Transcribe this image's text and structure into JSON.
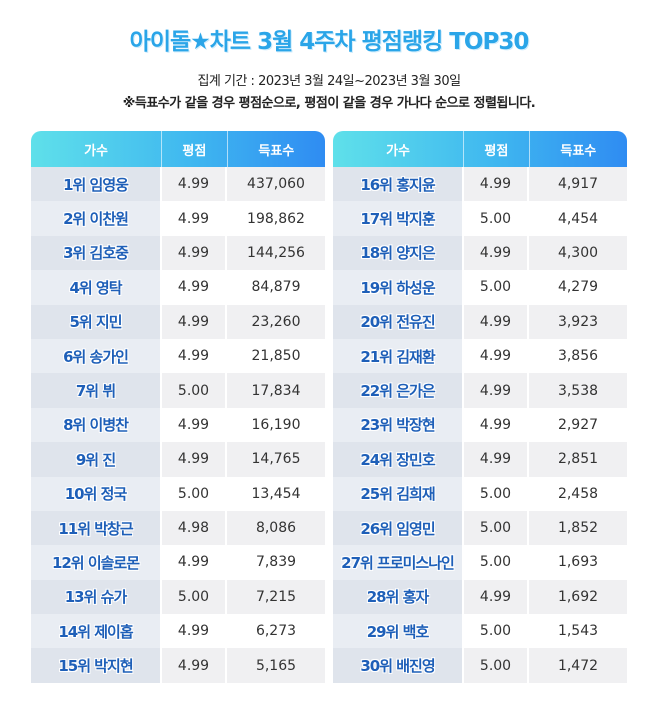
{
  "header": {
    "title": "아이돌★차트 3월 4주차 평점랭킹 TOP30",
    "period": "집계 기간 : 2023년 3월 24일~2023년 3월 30일",
    "note": "※득표수가 같을 경우 평점순으로, 평점이 같을 경우 가나다 순으로 정렬됩니다."
  },
  "columns": {
    "singer": "가수",
    "rating": "평점",
    "votes": "득표수"
  },
  "left_rows": [
    {
      "name": "1위 임영웅",
      "rating": "4.99",
      "votes": "437,060"
    },
    {
      "name": "2위 이찬원",
      "rating": "4.99",
      "votes": "198,862"
    },
    {
      "name": "3위 김호중",
      "rating": "4.99",
      "votes": "144,256"
    },
    {
      "name": "4위 영탁",
      "rating": "4.99",
      "votes": "84,879"
    },
    {
      "name": "5위 지민",
      "rating": "4.99",
      "votes": "23,260"
    },
    {
      "name": "6위 송가인",
      "rating": "4.99",
      "votes": "21,850"
    },
    {
      "name": "7위 뷔",
      "rating": "5.00",
      "votes": "17,834"
    },
    {
      "name": "8위 이병찬",
      "rating": "4.99",
      "votes": "16,190"
    },
    {
      "name": "9위 진",
      "rating": "4.99",
      "votes": "14,765"
    },
    {
      "name": "10위 정국",
      "rating": "5.00",
      "votes": "13,454"
    },
    {
      "name": "11위 박창근",
      "rating": "4.98",
      "votes": "8,086"
    },
    {
      "name": "12위 이솔로몬",
      "rating": "4.99",
      "votes": "7,839"
    },
    {
      "name": "13위 슈가",
      "rating": "5.00",
      "votes": "7,215"
    },
    {
      "name": "14위 제이홉",
      "rating": "4.99",
      "votes": "6,273"
    },
    {
      "name": "15위 박지현",
      "rating": "4.99",
      "votes": "5,165"
    }
  ],
  "right_rows": [
    {
      "name": "16위 홍지윤",
      "rating": "4.99",
      "votes": "4,917"
    },
    {
      "name": "17위 박지훈",
      "rating": "5.00",
      "votes": "4,454"
    },
    {
      "name": "18위 양지은",
      "rating": "4.99",
      "votes": "4,300"
    },
    {
      "name": "19위 하성운",
      "rating": "5.00",
      "votes": "4,279"
    },
    {
      "name": "20위 전유진",
      "rating": "4.99",
      "votes": "3,923"
    },
    {
      "name": "21위 김재환",
      "rating": "4.99",
      "votes": "3,856"
    },
    {
      "name": "22위 은가은",
      "rating": "4.99",
      "votes": "3,538"
    },
    {
      "name": "23위 박장현",
      "rating": "4.99",
      "votes": "2,927"
    },
    {
      "name": "24위 장민호",
      "rating": "4.99",
      "votes": "2,851"
    },
    {
      "name": "25위 김희재",
      "rating": "5.00",
      "votes": "2,458"
    },
    {
      "name": "26위 임영민",
      "rating": "5.00",
      "votes": "1,852"
    },
    {
      "name": "27위 프로미스나인",
      "rating": "5.00",
      "votes": "1,693"
    },
    {
      "name": "28위 홍자",
      "rating": "4.99",
      "votes": "1,692"
    },
    {
      "name": "29위 백호",
      "rating": "5.00",
      "votes": "1,543"
    },
    {
      "name": "30위 배진영",
      "rating": "5.00",
      "votes": "1,472"
    }
  ]
}
